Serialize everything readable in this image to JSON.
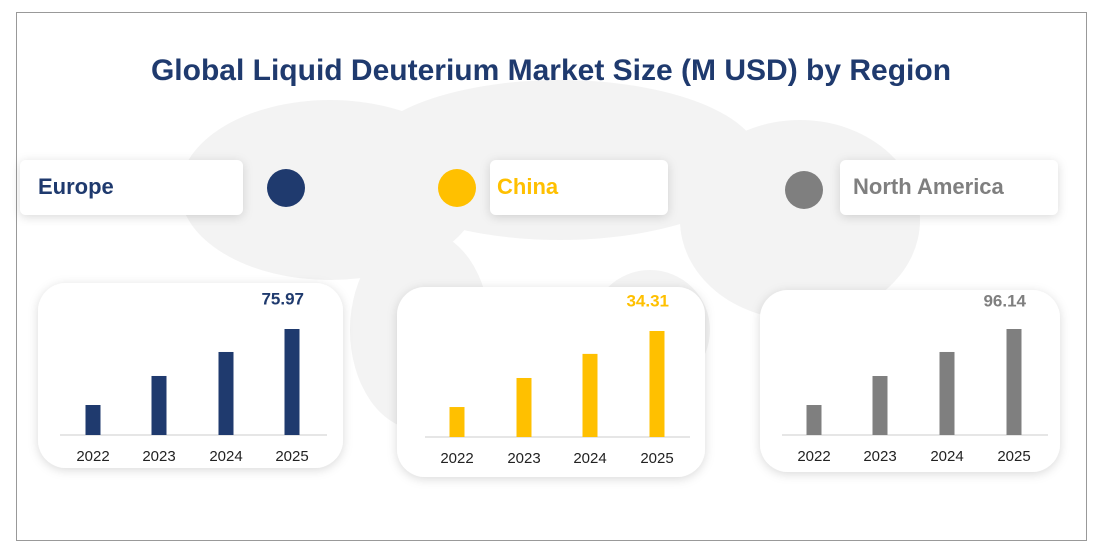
{
  "title": "Global  Liquid Deuterium Market Size (M USD) by Region",
  "chart_data": [
    {
      "type": "bar",
      "title": "Europe",
      "color": "#1f3a6e",
      "categories": [
        "2022",
        "2023",
        "2024",
        "2025"
      ],
      "values": [
        21.5,
        42.3,
        59.5,
        75.97
      ]
    },
    {
      "type": "bar",
      "title": "China",
      "color": "#ffc000",
      "categories": [
        "2022",
        "2023",
        "2024",
        "2025"
      ],
      "values": [
        9.7,
        19.1,
        26.9,
        34.31
      ]
    },
    {
      "type": "bar",
      "title": "North America",
      "color": "#7f7f7f",
      "categories": [
        "2022",
        "2023",
        "2024",
        "2025"
      ],
      "values": [
        27.2,
        53.5,
        75.3,
        96.14
      ]
    }
  ]
}
